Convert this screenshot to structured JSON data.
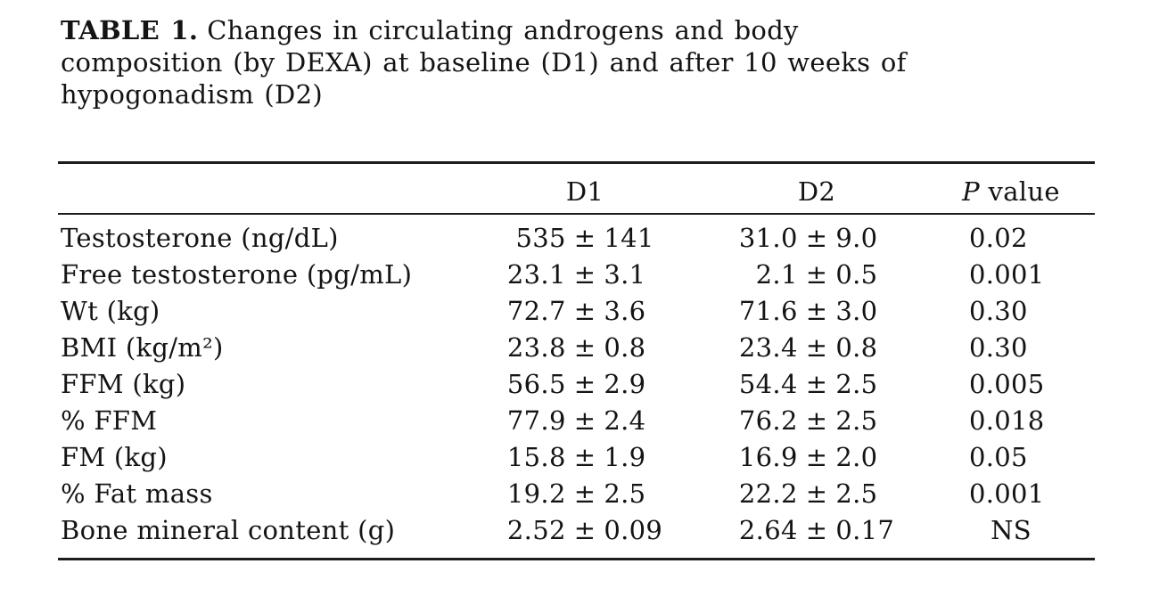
{
  "caption": {
    "label": "TABLE 1.",
    "lines": [
      "Changes in circulating androgens and body",
      "composition (by DEXA) at baseline (D1) and after 10 weeks of",
      "hypogonadism (D2)"
    ]
  },
  "table": {
    "plus_minus": "±",
    "columns": {
      "parameter": "",
      "d1": "D1",
      "d2": "D2",
      "p_italic": "P",
      "p_rest": "value"
    },
    "rows": [
      {
        "parameter": "Testosterone (ng/dL)",
        "d1_mean": "535",
        "d1_sd": "141",
        "d2_mean": "31.0",
        "d2_sd": "9.0",
        "p": "0.02"
      },
      {
        "parameter": "Free testosterone (pg/mL)",
        "d1_mean": "23.1",
        "d1_sd": "3.1",
        "d2_mean": "2.1",
        "d2_sd": "0.5",
        "p": "0.001"
      },
      {
        "parameter": "Wt (kg)",
        "d1_mean": "72.7",
        "d1_sd": "3.6",
        "d2_mean": "71.6",
        "d2_sd": "3.0",
        "p": "0.30"
      },
      {
        "parameter": "BMI (kg/m²)",
        "d1_mean": "23.8",
        "d1_sd": "0.8",
        "d2_mean": "23.4",
        "d2_sd": "0.8",
        "p": "0.30"
      },
      {
        "parameter": "FFM (kg)",
        "d1_mean": "56.5",
        "d1_sd": "2.9",
        "d2_mean": "54.4",
        "d2_sd": "2.5",
        "p": "0.005"
      },
      {
        "parameter": "% FFM",
        "d1_mean": "77.9",
        "d1_sd": "2.4",
        "d2_mean": "76.2",
        "d2_sd": "2.5",
        "p": "0.018"
      },
      {
        "parameter": "FM (kg)",
        "d1_mean": "15.8",
        "d1_sd": "1.9",
        "d2_mean": "16.9",
        "d2_sd": "2.0",
        "p": "0.05"
      },
      {
        "parameter": "% Fat mass",
        "d1_mean": "19.2",
        "d1_sd": "2.5",
        "d2_mean": "22.2",
        "d2_sd": "2.5",
        "p": "0.001"
      },
      {
        "parameter": "Bone mineral content (g)",
        "d1_mean": "2.52",
        "d1_sd": "0.09",
        "d2_mean": "2.64",
        "d2_sd": "0.17",
        "p": "NS"
      }
    ]
  },
  "colors": {
    "text": "#141414",
    "rule": "#1c1c1c",
    "background": "#ffffff"
  }
}
